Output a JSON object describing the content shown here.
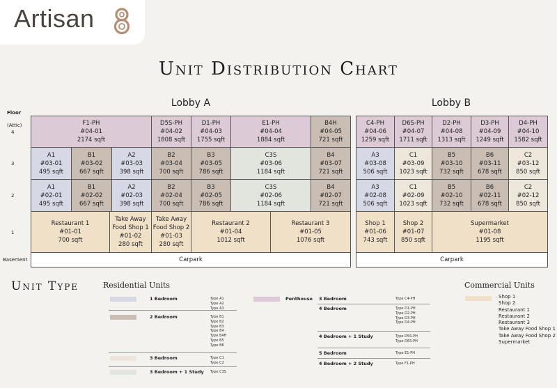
{
  "brand": {
    "name": "Artisan"
  },
  "title": "Unit Distribution Chart",
  "lobbies": {
    "a": "Lobby A",
    "b": "Lobby B"
  },
  "floor_labels": {
    "header": "Floor",
    "attic": "(Attic)",
    "f4": "4",
    "f3": "3",
    "f2": "2",
    "f1": "1",
    "basement": "Basement"
  },
  "colors": {
    "penthouse": "#dccad6",
    "one_bed": "#d6d8e6",
    "two_bed": "#c9bdb4",
    "three_bed": "#ede6db",
    "three_bed_study": "#e1e5de",
    "commercial": "#f0e0c8",
    "carpark": "#ffffff"
  },
  "units": [
    {
      "type": "F1-PH",
      "number": "#04-01",
      "size": "2174 sqft",
      "color": "penthouse"
    },
    {
      "type": "D5S-PH",
      "number": "#04-02",
      "size": "1808 sqft",
      "color": "penthouse"
    },
    {
      "type": "D1-PH",
      "number": "#04-03",
      "size": "1755 sqft",
      "color": "penthouse"
    },
    {
      "type": "E1-PH",
      "number": "#04-04",
      "size": "1884 sqft",
      "color": "penthouse"
    },
    {
      "type": "B4H",
      "number": "#04-05",
      "size": "721 sqft",
      "color": "two_bed"
    },
    {
      "type": "C4-PH",
      "number": "#04-06",
      "size": "1259 sqft",
      "color": "penthouse"
    },
    {
      "type": "D6S-PH",
      "number": "#04-07",
      "size": "1711 sqft",
      "color": "penthouse"
    },
    {
      "type": "D2-PH",
      "number": "#04-08",
      "size": "1313 sqft",
      "color": "penthouse"
    },
    {
      "type": "D3-PH",
      "number": "#04-09",
      "size": "1249 sqft",
      "color": "penthouse"
    },
    {
      "type": "D4-PH",
      "number": "#04-10",
      "size": "1582 sqft",
      "color": "penthouse"
    },
    {
      "type": "A1",
      "number": "#03-01",
      "size": "495 sqft",
      "color": "one_bed"
    },
    {
      "type": "B1",
      "number": "#03-02",
      "size": "667 sqft",
      "color": "two_bed"
    },
    {
      "type": "A2",
      "number": "#03-03",
      "size": "398 sqft",
      "color": "one_bed"
    },
    {
      "type": "B2",
      "number": "#03-04",
      "size": "700 sqft",
      "color": "two_bed"
    },
    {
      "type": "B3",
      "number": "#03-05",
      "size": "786 sqft",
      "color": "two_bed"
    },
    {
      "type": "C3S",
      "number": "#03-06",
      "size": "1184 sqft",
      "color": "three_bed_study"
    },
    {
      "type": "B4",
      "number": "#03-07",
      "size": "721 sqft",
      "color": "two_bed"
    },
    {
      "type": "A3",
      "number": "#03-08",
      "size": "506 sqft",
      "color": "one_bed"
    },
    {
      "type": "C1",
      "number": "#03-09",
      "size": "1023 sqft",
      "color": "three_bed"
    },
    {
      "type": "B5",
      "number": "#03-10",
      "size": "732 sqft",
      "color": "two_bed"
    },
    {
      "type": "B6",
      "number": "#03-11",
      "size": "678 sqft",
      "color": "two_bed"
    },
    {
      "type": "C2",
      "number": "#03-12",
      "size": "850 sqft",
      "color": "three_bed"
    },
    {
      "type": "A1",
      "number": "#02-01",
      "size": "495 sqft",
      "color": "one_bed"
    },
    {
      "type": "B1",
      "number": "#02-02",
      "size": "667 sqft",
      "color": "two_bed"
    },
    {
      "type": "A2",
      "number": "#02-03",
      "size": "398 sqft",
      "color": "one_bed"
    },
    {
      "type": "B2",
      "number": "#02-04",
      "size": "700 sqft",
      "color": "two_bed"
    },
    {
      "type": "B3",
      "number": "#02-05",
      "size": "786 sqft",
      "color": "two_bed"
    },
    {
      "type": "C3S",
      "number": "#02-06",
      "size": "1184 sqft",
      "color": "three_bed_study"
    },
    {
      "type": "B4",
      "number": "#02-07",
      "size": "721 sqft",
      "color": "two_bed"
    },
    {
      "type": "A3",
      "number": "#02-08",
      "size": "506 sqft",
      "color": "one_bed"
    },
    {
      "type": "C1",
      "number": "#02-09",
      "size": "1023 sqft",
      "color": "three_bed"
    },
    {
      "type": "B5",
      "number": "#02-10",
      "size": "732 sqft",
      "color": "two_bed"
    },
    {
      "type": "B6",
      "number": "#02-11",
      "size": "678 sqft",
      "color": "two_bed"
    },
    {
      "type": "C2",
      "number": "#02-12",
      "size": "850 sqft",
      "color": "three_bed"
    },
    {
      "type": "Restaurant 1",
      "number": "#01-01",
      "size": "700 sqft",
      "color": "commercial"
    },
    {
      "type": "Take Away Food Shop 1",
      "type_lines": [
        "Take Away",
        "Food Shop 1"
      ],
      "number": "#01-02",
      "size": "280 sqft",
      "color": "commercial"
    },
    {
      "type": "Take Away Food Shop 2",
      "type_lines": [
        "Take Away",
        "Food Shop 2"
      ],
      "number": "#01-03",
      "size": "280 sqft",
      "color": "commercial"
    },
    {
      "type": "Restaurant 2",
      "number": "#01-04",
      "size": "1012 sqft",
      "color": "commercial"
    },
    {
      "type": "Restaurant 3",
      "number": "#01-05",
      "size": "1076 sqft",
      "color": "commercial"
    },
    {
      "type": "Shop 1",
      "number": "#01-06",
      "size": "743 sqft",
      "color": "commercial"
    },
    {
      "type": "Shop 2",
      "number": "#01-07",
      "size": "850 sqft",
      "color": "commercial"
    },
    {
      "type": "Supermarket",
      "number": "#01-08",
      "size": "1195 sqft",
      "color": "commercial"
    },
    {
      "type": "Carpark",
      "color": "carpark"
    },
    {
      "type": "Carpark",
      "color": "carpark"
    }
  ],
  "legend": {
    "title": "Unit Type",
    "residential_title": "Residential Units",
    "commercial_title": "Commercial Units",
    "residential": [
      {
        "name": "1 Bedroom",
        "types": [
          "Type A1",
          "Type A2",
          "Type A3"
        ],
        "color": "one_bed"
      },
      {
        "name": "2 Bedroom",
        "types": [
          "Type B1",
          "Type B2",
          "Type B3",
          "Type B4",
          "Type B4H",
          "Type B5",
          "Type B6"
        ],
        "color": "two_bed"
      },
      {
        "name": "3 Bedroom",
        "types": [
          "Type C1",
          "Type C2"
        ],
        "color": "three_bed"
      },
      {
        "name": "3 Bedroom + 1 Study",
        "types": [
          "Type C3S"
        ],
        "color": "three_bed_study"
      }
    ],
    "penthouse_label": "Penthouse",
    "penthouse": [
      {
        "name": "3 Bedroom",
        "types": [
          "Type C4-PH"
        ]
      },
      {
        "name": "4 Bedroom",
        "types": [
          "Type D1-PH",
          "Type D2-PH",
          "Type D3-PH",
          "Type D4-PH"
        ]
      },
      {
        "name": "4 Bedroom + 1 Study",
        "types": [
          "Type D5S-PH",
          "Type D6S-PH"
        ]
      },
      {
        "name": "5 Bedroom",
        "types": [
          "Type E1-PH"
        ]
      },
      {
        "name": "4 Bedroom + 2 Study",
        "types": [
          "Type F1-PH"
        ]
      }
    ],
    "commercial": [
      "Shop 1",
      "Shop 2",
      "Restaurant 1",
      "Restaurant 2",
      "Restaurant 3",
      "Take Away Food Shop 1",
      "Take Away Food Shop 2",
      "Supermarket"
    ]
  }
}
